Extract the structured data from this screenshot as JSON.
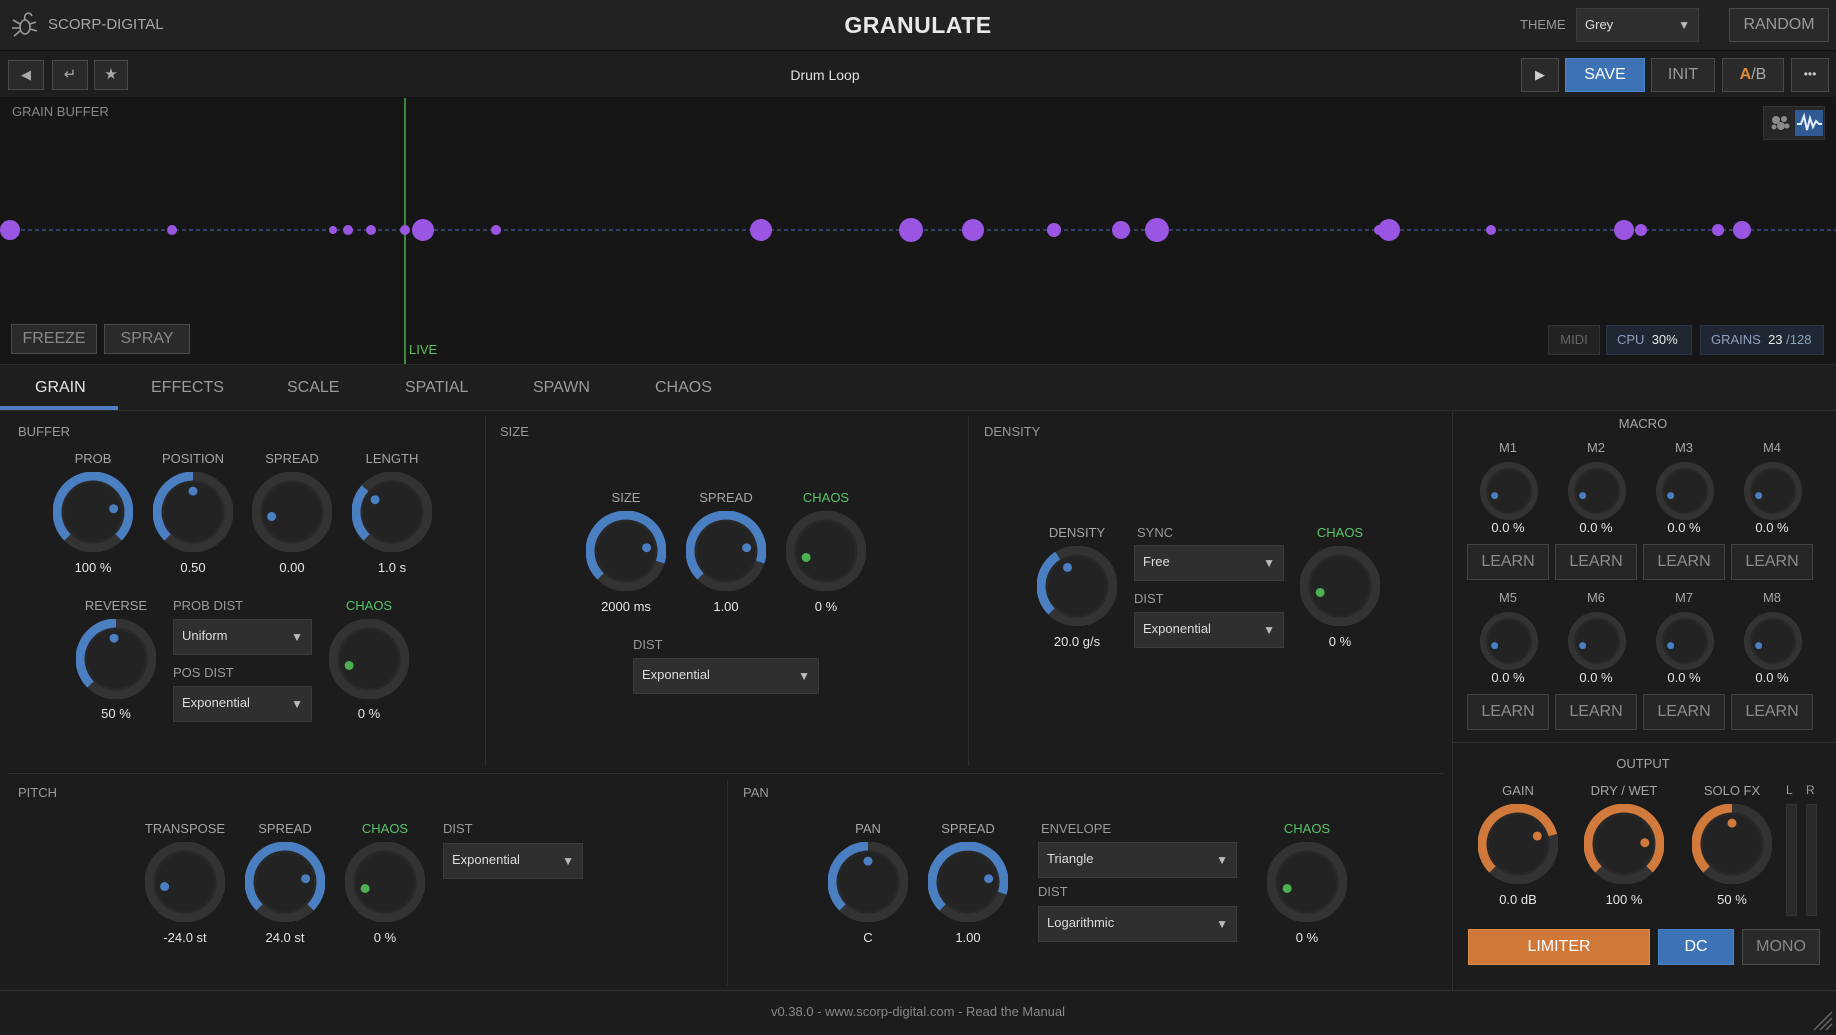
{
  "header": {
    "brand": "SCORP-DIGITAL",
    "title": "GRANULATE",
    "theme_label": "THEME",
    "theme_value": "Grey",
    "random_label": "RANDOM"
  },
  "toolbar": {
    "prev_icon": "arrow-left-icon",
    "enter_icon": "enter-icon",
    "star_icon": "star-icon",
    "preset_name": "Drum Loop",
    "play_icon": "play-icon",
    "save_label": "SAVE",
    "init_label": "INIT",
    "ab_a": "A",
    "ab_b": "/B",
    "more_label": "•••"
  },
  "buffer": {
    "label": "GRAIN BUFFER",
    "live_label": "LIVE",
    "freeze_label": "FREEZE",
    "spray_label": "SPRAY",
    "midi_label": "MIDI",
    "cpu_label": "CPU",
    "cpu_value": "30%",
    "grains_label": "GRAINS",
    "grains_value": "23",
    "grains_max": "/128",
    "colors": {
      "grain": "#9a56e3",
      "live": "#4caf50",
      "accent": "#4a7fc1"
    }
  },
  "tabs": [
    "GRAIN",
    "EFFECTS",
    "SCALE",
    "SPATIAL",
    "SPAWN",
    "CHAOS"
  ],
  "buffer_section": {
    "title": "BUFFER",
    "prob_label": "PROB",
    "prob_value": "100 %",
    "position_label": "POSITION",
    "position_value": "0.50",
    "spread_label": "SPREAD",
    "spread_value": "0.00",
    "length_label": "LENGTH",
    "length_value": "1.0 s",
    "reverse_label": "REVERSE",
    "reverse_value": "50 %",
    "prob_dist_label": "PROB DIST",
    "prob_dist_value": "Uniform",
    "pos_dist_label": "POS DIST",
    "pos_dist_value": "Exponential",
    "chaos_label": "CHAOS",
    "chaos_value": "0 %"
  },
  "size_section": {
    "title": "SIZE",
    "size_label": "SIZE",
    "size_value": "2000 ms",
    "spread_label": "SPREAD",
    "spread_value": "1.00",
    "chaos_label": "CHAOS",
    "chaos_value": "0 %",
    "dist_label": "DIST",
    "dist_value": "Exponential"
  },
  "density_section": {
    "title": "DENSITY",
    "density_label": "DENSITY",
    "density_value": "20.0 g/s",
    "sync_label": "SYNC",
    "sync_value": "Free",
    "dist_label": "DIST",
    "dist_value": "Exponential",
    "chaos_label": "CHAOS",
    "chaos_value": "0 %"
  },
  "macro": {
    "title": "MACRO",
    "items": [
      {
        "label": "M1",
        "value": "0.0 %"
      },
      {
        "label": "M2",
        "value": "0.0 %"
      },
      {
        "label": "M3",
        "value": "0.0 %"
      },
      {
        "label": "M4",
        "value": "0.0 %"
      },
      {
        "label": "M5",
        "value": "0.0 %"
      },
      {
        "label": "M6",
        "value": "0.0 %"
      },
      {
        "label": "M7",
        "value": "0.0 %"
      },
      {
        "label": "M8",
        "value": "0.0 %"
      }
    ],
    "learn_label": "LEARN"
  },
  "pitch_section": {
    "title": "PITCH",
    "transpose_label": "TRANSPOSE",
    "transpose_value": "-24.0 st",
    "spread_label": "SPREAD",
    "spread_value": "24.0 st",
    "chaos_label": "CHAOS",
    "chaos_value": "0 %",
    "dist_label": "DIST",
    "dist_value": "Exponential"
  },
  "pan_section": {
    "title": "PAN",
    "pan_label": "PAN",
    "pan_value": "C",
    "spread_label": "SPREAD",
    "spread_value": "1.00",
    "envelope_label": "ENVELOPE",
    "envelope_value": "Triangle",
    "dist_label": "DIST",
    "dist_value": "Logarithmic",
    "chaos_label": "CHAOS",
    "chaos_value": "0 %"
  },
  "output": {
    "title": "OUTPUT",
    "gain_label": "GAIN",
    "gain_value": "0.0 dB",
    "drywet_label": "DRY / WET",
    "drywet_value": "100 %",
    "solo_label": "SOLO FX",
    "solo_value": "50 %",
    "meter_l": "L",
    "meter_r": "R",
    "limiter_label": "LIMITER",
    "dc_label": "DC",
    "mono_label": "MONO"
  },
  "footer": {
    "text": "v0.38.0 - www.scorp-digital.com - Read the Manual"
  }
}
